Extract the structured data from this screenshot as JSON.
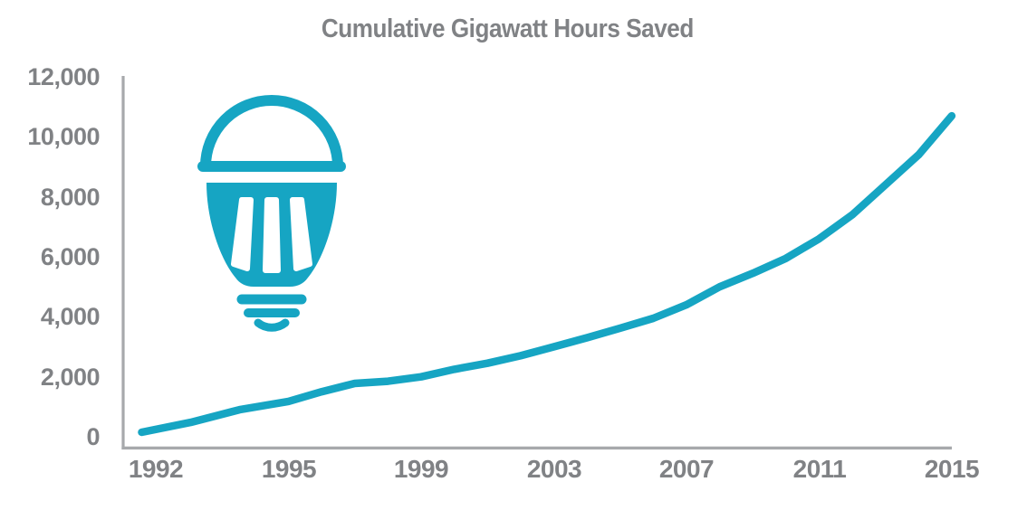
{
  "title": "Cumulative Gigawatt Hours Saved",
  "colors": {
    "line": "#16a5c3",
    "icon": "#16a5c3",
    "label_text": "#808285",
    "axis_line": "#a7a9ac",
    "background": "#ffffff"
  },
  "icons": [
    {
      "name": "led-lightbulb-icon",
      "meaning": "energy-saving LED light bulb",
      "color": "#16a5c3"
    }
  ],
  "chart_data": {
    "type": "line",
    "title": "Cumulative Gigawatt Hours Saved",
    "xlabel": "",
    "ylabel": "",
    "x": [
      1992,
      1993,
      1994,
      1995,
      1996,
      1997,
      1998,
      1999,
      2000,
      2001,
      2002,
      2003,
      2004,
      2005,
      2006,
      2007,
      2008,
      2009,
      2010,
      2011,
      2012,
      2013,
      2014,
      2015
    ],
    "series": [
      {
        "name": "Cumulative Gigawatt Hours Saved",
        "color": "#16a5c3",
        "values": [
          150,
          480,
          900,
          1180,
          1500,
          1780,
          1850,
          2000,
          2250,
          2450,
          2700,
          3000,
          3300,
          3620,
          3950,
          4400,
          5000,
          5450,
          5950,
          6600,
          7400,
          8400,
          9400,
          10700
        ]
      }
    ],
    "ylim": [
      0,
      12000
    ],
    "y_ticks": [
      0,
      2000,
      4000,
      6000,
      8000,
      10000,
      12000
    ],
    "y_tick_labels": [
      "0",
      "2,000",
      "4,000",
      "6,000",
      "8,000",
      "10,000",
      "12,000"
    ],
    "x_tick_years": [
      1992,
      1995,
      1999,
      2003,
      2007,
      2011,
      2015
    ],
    "x_tick_labels": [
      "1992",
      "1995",
      "1999",
      "2003",
      "2007",
      "2011",
      "2015"
    ],
    "grid": false,
    "legend": "none"
  }
}
